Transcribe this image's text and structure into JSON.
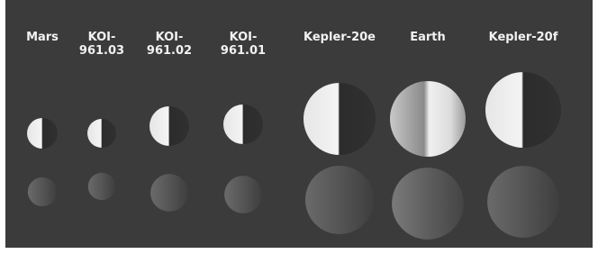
{
  "labels": [
    "Mars",
    "KOI-961.03",
    "KOI-961.02",
    "KOI-961.01",
    "Kepler-20e",
    "Earth",
    "Kepler-20f"
  ]
}
